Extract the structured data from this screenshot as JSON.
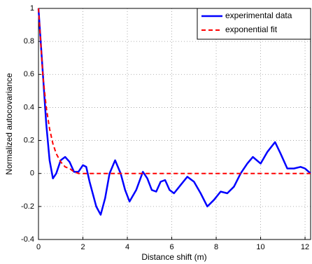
{
  "chart_data": {
    "type": "line",
    "xlabel": "Distance shift (m)",
    "ylabel": "Normalized autocovariance",
    "x": [
      0,
      0.2,
      0.35,
      0.5,
      0.65,
      0.8,
      1.0,
      1.2,
      1.4,
      1.6,
      1.8,
      2.0,
      2.15,
      2.3,
      2.6,
      2.8,
      3.0,
      3.2,
      3.45,
      3.7,
      3.9,
      4.1,
      4.4,
      4.7,
      4.9,
      5.1,
      5.3,
      5.5,
      5.7,
      5.9,
      6.1,
      6.4,
      6.7,
      7.0,
      7.3,
      7.6,
      7.9,
      8.2,
      8.5,
      8.8,
      9.1,
      9.4,
      9.65,
      10.0,
      10.3,
      10.65,
      10.9,
      11.2,
      11.5,
      11.8,
      12.0,
      12.25
    ],
    "series": [
      {
        "name": "experimental data",
        "color": "#0000ff",
        "dash": false,
        "values": [
          1,
          0.6,
          0.3,
          0.08,
          -0.03,
          0,
          0.08,
          0.1,
          0.07,
          0.01,
          0.01,
          0.05,
          0.04,
          -0.05,
          -0.2,
          -0.25,
          -0.15,
          0,
          0.08,
          0,
          -0.1,
          -0.17,
          -0.1,
          0.01,
          -0.03,
          -0.1,
          -0.11,
          -0.05,
          -0.04,
          -0.1,
          -0.12,
          -0.07,
          -0.02,
          -0.05,
          -0.12,
          -0.2,
          -0.16,
          -0.11,
          -0.12,
          -0.08,
          0,
          0.06,
          0.1,
          0.06,
          0.13,
          0.19,
          0.12,
          0.03,
          0.03,
          0.04,
          0.03,
          0
        ]
      },
      {
        "name": "exponential fit",
        "color": "#ff0000",
        "dash": true,
        "values": [
          1,
          0.59,
          0.4,
          0.27,
          0.18,
          0.12,
          0.07,
          0.04,
          0.03,
          0.01,
          0,
          0,
          0,
          0,
          0,
          0,
          0,
          0,
          0,
          0,
          0,
          0,
          0,
          0,
          0,
          0,
          0,
          0,
          0,
          0,
          0,
          0,
          0,
          0,
          0,
          0,
          0,
          0,
          0,
          0,
          0,
          0,
          0,
          0,
          0,
          0,
          0,
          0,
          0,
          0,
          0,
          0
        ]
      }
    ],
    "xlim": [
      0,
      12.25
    ],
    "ylim": [
      -0.4,
      1
    ],
    "xticks": [
      0,
      2,
      4,
      6,
      8,
      10,
      12
    ],
    "yticks": [
      -0.4,
      -0.2,
      0,
      0.2,
      0.4,
      0.6,
      0.8,
      1
    ],
    "grid": true,
    "legend": "top-right"
  }
}
